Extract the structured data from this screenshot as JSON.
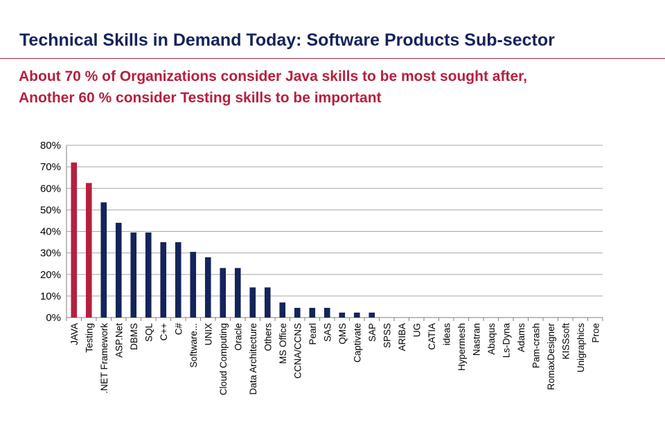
{
  "header": {
    "title": "Technical Skills in Demand Today: Software Products Sub-sector",
    "subtitle_line1": "About 70 % of Organizations consider Java skills to be most sought after,",
    "subtitle_line2": "Another 60 % consider Testing skills to be important"
  },
  "colors": {
    "highlight": "#b5203f",
    "bar": "#14245b",
    "grid": "#a6a6a6",
    "text": "#000000"
  },
  "chart_data": {
    "type": "bar",
    "categories": [
      "JAVA",
      "Testing",
      ".NET Framework",
      "ASP.Net",
      "DBMS",
      "SQL",
      "C++",
      "C#",
      "Software...",
      "UNIX",
      "Cloud Computing",
      "Oracle",
      "Data Architecture",
      "Others",
      "MS Office",
      "CCNA/CCNS",
      "Pearl",
      "SAS",
      "QMS",
      "Captivate",
      "SAP",
      "SPSS",
      "ARIBA",
      "UG",
      "CATIA",
      "ideas",
      "Hypermesh",
      "Nastran",
      "Abaqus",
      "Ls-Dyna",
      "Adams",
      "Pam-crash",
      "RomaxDesigner",
      "KISSsoft",
      "Unigraphics",
      "Proe"
    ],
    "values": [
      72,
      62.5,
      53.5,
      44,
      39.5,
      39.5,
      35,
      35,
      30.5,
      28,
      23,
      23,
      14,
      14,
      7,
      4.5,
      4.5,
      4.5,
      2.3,
      2.3,
      2.3,
      0,
      0,
      0,
      0,
      0,
      0,
      0,
      0,
      0,
      0,
      0,
      0,
      0,
      0,
      0
    ],
    "highlighted": [
      "JAVA",
      "Testing"
    ],
    "ylim": [
      0,
      80
    ],
    "yticks": [
      "0%",
      "10%",
      "20%",
      "30%",
      "40%",
      "50%",
      "60%",
      "70%",
      "80%"
    ],
    "ytick_values": [
      0,
      10,
      20,
      30,
      40,
      50,
      60,
      70,
      80
    ],
    "title": "",
    "xlabel": "",
    "ylabel": "",
    "grid": true
  }
}
